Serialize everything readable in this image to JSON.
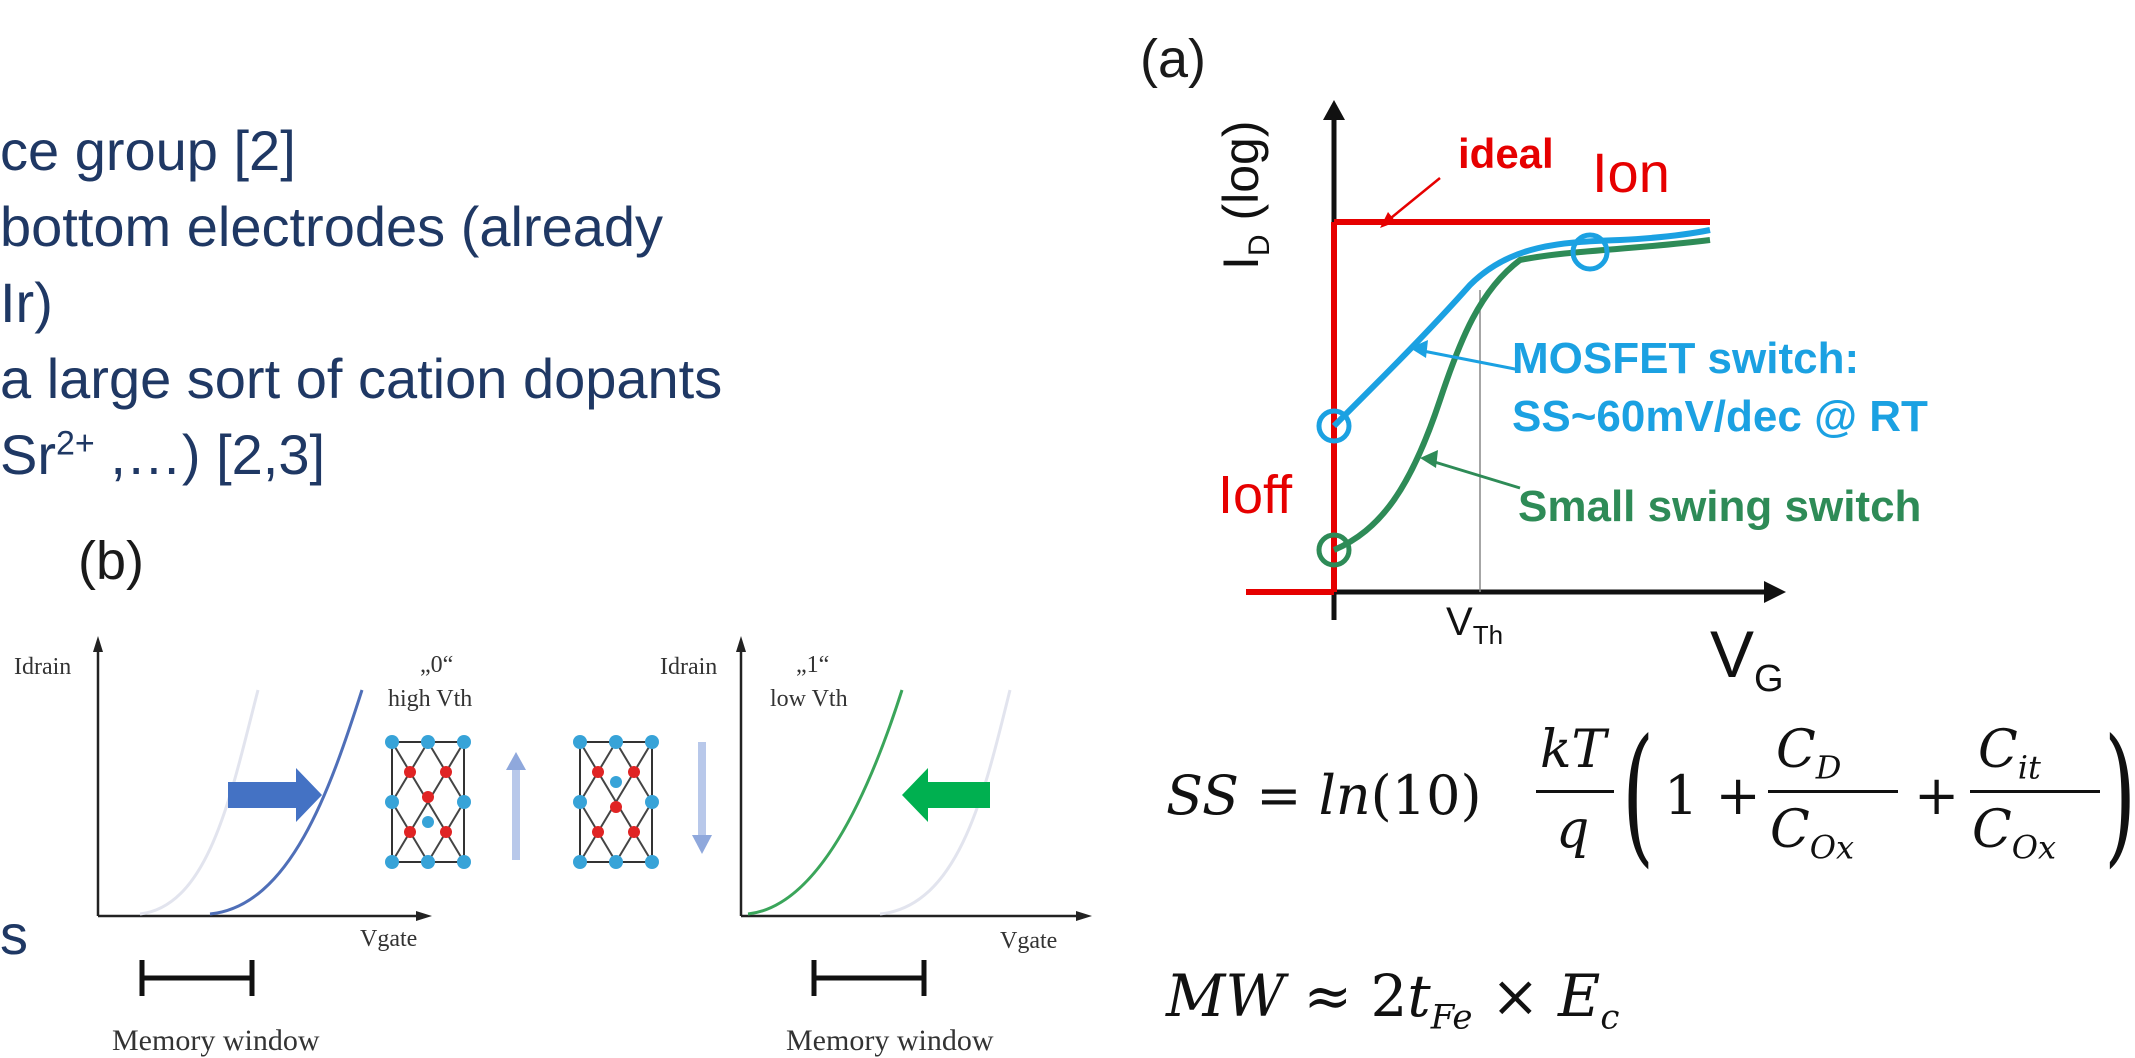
{
  "bullets": {
    "line1": "ce group [2]",
    "line2": " bottom electrodes (already",
    "line3": " Ir)",
    "line4": " a large sort of cation dopants",
    "line5_pre": "Sr",
    "line5_sup": "2+",
    "line5_post": " ,…) [2,3]",
    "line6": "s"
  },
  "panel_a": {
    "label": "(a)",
    "y_axis_main": "I",
    "y_axis_sub": "D",
    "y_axis_log": " (log)",
    "ideal": "ideal",
    "ion": "Ion",
    "ioff": "Ioff",
    "mosfet_line1": "MOSFET switch:",
    "mosfet_line2": "SS~60mV/dec @ RT",
    "small_swing": "Small swing switch",
    "vth_main": "V",
    "vth_sub": "Th",
    "vg_main": "V",
    "vg_sub": "G"
  },
  "panel_b": {
    "label": "(b)",
    "left": {
      "y_axis": "Idrain",
      "x_axis": "Vgate",
      "state": "„0“",
      "state_desc": "high Vth",
      "window": "Memory window"
    },
    "right": {
      "y_axis": "Idrain",
      "x_axis": "Vgate",
      "state": "„1“",
      "state_desc": "low Vth",
      "window": "Memory window"
    }
  },
  "equations": {
    "ss": "SS = ln(10) kT/q (1 + C_D/C_Ox + C_it/C_Ox)",
    "mw": "MW ≈ 2t_Fe × E_c"
  },
  "colors": {
    "text_navy": "#1f3864",
    "red": "#e60000",
    "blue": "#1ba1e2",
    "green": "#2e8b57",
    "blue_arrow": "#4472c4",
    "green_arrow": "#00b050"
  }
}
